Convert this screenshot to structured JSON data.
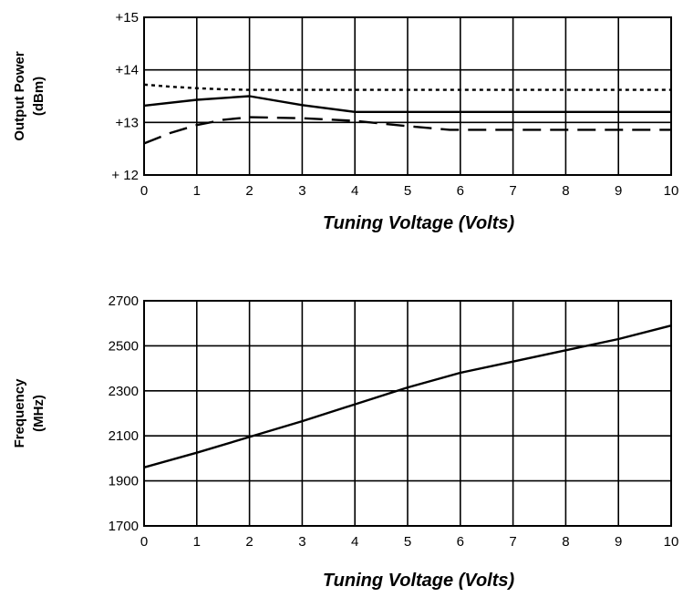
{
  "chart_data": [
    {
      "type": "line",
      "xlabel": "Tuning Voltage (Volts)",
      "ylabel": [
        "Output Power",
        "(dBm)"
      ],
      "xlim": [
        0,
        10
      ],
      "ylim": [
        12,
        15
      ],
      "xticks": [
        "0",
        "1",
        "2",
        "3",
        "4",
        "5",
        "6",
        "7",
        "8",
        "9",
        "10"
      ],
      "yticks": [
        {
          "value": 12,
          "label": "+ 12"
        },
        {
          "value": 13,
          "label": "+13"
        },
        {
          "value": 14,
          "label": "+14"
        },
        {
          "value": 15,
          "label": "+15"
        }
      ],
      "grid": true,
      "series": [
        {
          "style": "dotted",
          "x": [
            0,
            0.5,
            1,
            1.5,
            2,
            3,
            4,
            5,
            6,
            7,
            8,
            9,
            10
          ],
          "y": [
            13.72,
            13.68,
            13.65,
            13.63,
            13.62,
            13.62,
            13.62,
            13.62,
            13.62,
            13.62,
            13.62,
            13.62,
            13.62
          ]
        },
        {
          "style": "solid",
          "x": [
            0,
            1,
            2,
            3,
            4,
            5,
            6,
            7,
            8,
            9,
            10
          ],
          "y": [
            13.32,
            13.43,
            13.5,
            13.33,
            13.2,
            13.2,
            13.2,
            13.2,
            13.2,
            13.2,
            13.2
          ]
        },
        {
          "style": "dashed",
          "x": [
            0,
            0.5,
            1,
            1.5,
            2,
            3,
            4,
            5,
            5.8,
            7,
            8,
            9,
            10
          ],
          "y": [
            12.6,
            12.8,
            12.95,
            13.05,
            13.1,
            13.08,
            13.03,
            12.93,
            12.86,
            12.86,
            12.86,
            12.86,
            12.86
          ]
        }
      ]
    },
    {
      "type": "line",
      "xlabel": "Tuning Voltage (Volts)",
      "ylabel": [
        "Frequency",
        "(MHz)"
      ],
      "xlim": [
        0,
        10
      ],
      "ylim": [
        1700,
        2700
      ],
      "xticks": [
        "0",
        "1",
        "2",
        "3",
        "4",
        "5",
        "6",
        "7",
        "8",
        "9",
        "10"
      ],
      "yticks": [
        {
          "value": 1700,
          "label": "1700"
        },
        {
          "value": 1900,
          "label": "1900"
        },
        {
          "value": 2100,
          "label": "2100"
        },
        {
          "value": 2300,
          "label": "2300"
        },
        {
          "value": 2500,
          "label": "2500"
        },
        {
          "value": 2700,
          "label": "2700"
        }
      ],
      "grid": true,
      "series": [
        {
          "style": "solid",
          "x": [
            0,
            1,
            2,
            3,
            4,
            5,
            6,
            7,
            8,
            9,
            10
          ],
          "y": [
            1960,
            2025,
            2095,
            2165,
            2240,
            2315,
            2380,
            2430,
            2480,
            2530,
            2590
          ]
        }
      ]
    }
  ]
}
